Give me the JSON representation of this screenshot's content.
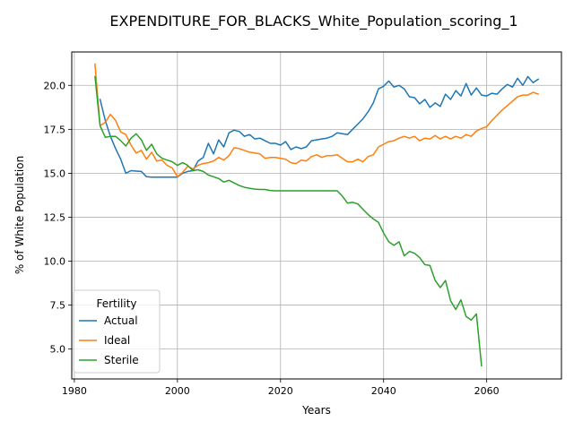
{
  "chart_data": {
    "type": "line",
    "title": "EXPENDITURE_FOR_BLACKS_White_Population_scoring_1",
    "xlabel": "Years",
    "ylabel": "% of White Population",
    "xlim": [
      1979.5,
      2074.5
    ],
    "ylim": [
      3.3,
      21.9
    ],
    "xticks": [
      1980,
      2000,
      2020,
      2040,
      2060
    ],
    "yticks": [
      5.0,
      7.5,
      10.0,
      12.5,
      15.0,
      17.5,
      20.0
    ],
    "grid": true,
    "legend": {
      "title": "Fertility",
      "position": "lower-left"
    },
    "series": [
      {
        "name": "Actual",
        "color": "#1f77b4",
        "x": [
          1985,
          1986,
          1987,
          1988,
          1989,
          1990,
          1991,
          1992,
          1993,
          1994,
          1995,
          1996,
          1997,
          1998,
          1999,
          2000,
          2001,
          2002,
          2003,
          2004,
          2005,
          2006,
          2007,
          2008,
          2009,
          2010,
          2011,
          2012,
          2013,
          2014,
          2015,
          2016,
          2017,
          2018,
          2019,
          2020,
          2021,
          2022,
          2023,
          2024,
          2025,
          2026,
          2027,
          2028,
          2029,
          2030,
          2031,
          2032,
          2033,
          2034,
          2035,
          2036,
          2037,
          2038,
          2039,
          2040,
          2041,
          2042,
          2043,
          2044,
          2045,
          2046,
          2047,
          2048,
          2049,
          2050,
          2051,
          2052,
          2053,
          2054,
          2055,
          2056,
          2057,
          2058,
          2059,
          2060,
          2061,
          2062,
          2063,
          2064,
          2065,
          2066,
          2067,
          2068,
          2069,
          2070
        ],
        "y": [
          19.2,
          18.0,
          17.1,
          16.4,
          15.8,
          15.0,
          15.15,
          15.12,
          15.1,
          14.8,
          14.78,
          14.78,
          14.78,
          14.78,
          14.78,
          14.78,
          15.0,
          15.1,
          15.15,
          15.7,
          15.9,
          16.7,
          16.1,
          16.9,
          16.5,
          17.3,
          17.45,
          17.38,
          17.1,
          17.2,
          16.95,
          17.0,
          16.85,
          16.7,
          16.7,
          16.6,
          16.8,
          16.35,
          16.5,
          16.4,
          16.5,
          16.85,
          16.9,
          16.95,
          17.0,
          17.1,
          17.3,
          17.25,
          17.2,
          17.5,
          17.8,
          18.1,
          18.5,
          19.0,
          19.8,
          19.95,
          20.25,
          19.9,
          20.0,
          19.8,
          19.35,
          19.3,
          18.95,
          19.2,
          18.75,
          19.0,
          18.8,
          19.5,
          19.2,
          19.7,
          19.4,
          20.1,
          19.45,
          19.85,
          19.45,
          19.4,
          19.55,
          19.5,
          19.8,
          20.05,
          19.9,
          20.4,
          20.0,
          20.5,
          20.15,
          20.35
        ]
      },
      {
        "name": "Ideal",
        "color": "#ff7f0e",
        "x": [
          1984,
          1985,
          1986,
          1987,
          1988,
          1989,
          1990,
          1991,
          1992,
          1993,
          1994,
          1995,
          1996,
          1997,
          1998,
          1999,
          2000,
          2001,
          2002,
          2003,
          2004,
          2005,
          2006,
          2007,
          2008,
          2009,
          2010,
          2011,
          2012,
          2013,
          2014,
          2015,
          2016,
          2017,
          2018,
          2019,
          2020,
          2021,
          2022,
          2023,
          2024,
          2025,
          2026,
          2027,
          2028,
          2029,
          2030,
          2031,
          2032,
          2033,
          2034,
          2035,
          2036,
          2037,
          2038,
          2039,
          2040,
          2041,
          2042,
          2043,
          2044,
          2045,
          2046,
          2047,
          2048,
          2049,
          2050,
          2051,
          2052,
          2053,
          2054,
          2055,
          2056,
          2057,
          2058,
          2059,
          2060,
          2061,
          2062,
          2063,
          2064,
          2065,
          2066,
          2067,
          2068,
          2069,
          2070
        ],
        "y": [
          21.2,
          17.7,
          17.9,
          18.35,
          18.0,
          17.35,
          17.2,
          16.6,
          16.15,
          16.3,
          15.8,
          16.2,
          15.7,
          15.75,
          15.45,
          15.3,
          14.8,
          15.05,
          15.4,
          15.25,
          15.45,
          15.55,
          15.6,
          15.7,
          15.9,
          15.75,
          16.0,
          16.45,
          16.4,
          16.3,
          16.2,
          16.15,
          16.1,
          15.85,
          15.9,
          15.9,
          15.85,
          15.8,
          15.6,
          15.55,
          15.75,
          15.7,
          15.95,
          16.05,
          15.9,
          16.0,
          16.0,
          16.05,
          15.85,
          15.65,
          15.65,
          15.8,
          15.65,
          15.95,
          16.05,
          16.5,
          16.65,
          16.8,
          16.85,
          17.0,
          17.1,
          17.0,
          17.1,
          16.85,
          17.0,
          16.95,
          17.15,
          16.95,
          17.1,
          16.95,
          17.1,
          17.0,
          17.2,
          17.1,
          17.4,
          17.55,
          17.65,
          18.0,
          18.3,
          18.6,
          18.85,
          19.1,
          19.35,
          19.45,
          19.45,
          19.6,
          19.5
        ]
      },
      {
        "name": "Sterile",
        "color": "#2ca02c",
        "x": [
          1984,
          1985,
          1986,
          1987,
          1988,
          1989,
          1990,
          1991,
          1992,
          1993,
          1994,
          1995,
          1996,
          1997,
          1998,
          1999,
          2000,
          2001,
          2002,
          2003,
          2004,
          2005,
          2006,
          2007,
          2008,
          2009,
          2010,
          2011,
          2012,
          2013,
          2014,
          2015,
          2016,
          2017,
          2018,
          2019,
          2020,
          2021,
          2022,
          2023,
          2024,
          2025,
          2026,
          2027,
          2028,
          2029,
          2030,
          2031,
          2032,
          2033,
          2034,
          2035,
          2036,
          2037,
          2038,
          2039,
          2040,
          2041,
          2042,
          2043,
          2044,
          2045,
          2046,
          2047,
          2048,
          2049,
          2050,
          2051,
          2052,
          2053,
          2054,
          2055,
          2056,
          2057,
          2058,
          2059
        ],
        "y": [
          20.5,
          17.7,
          17.05,
          17.1,
          17.1,
          16.85,
          16.55,
          17.0,
          17.25,
          16.9,
          16.3,
          16.65,
          16.1,
          15.85,
          15.75,
          15.65,
          15.45,
          15.6,
          15.45,
          15.15,
          15.2,
          15.1,
          14.9,
          14.8,
          14.7,
          14.5,
          14.6,
          14.45,
          14.3,
          14.2,
          14.15,
          14.1,
          14.08,
          14.08,
          14.02,
          14.0,
          14.0,
          14.0,
          14.0,
          14.0,
          14.0,
          14.0,
          14.0,
          14.0,
          14.0,
          14.0,
          14.0,
          14.0,
          13.7,
          13.3,
          13.35,
          13.25,
          12.95,
          12.65,
          12.4,
          12.2,
          11.6,
          11.1,
          10.9,
          11.1,
          10.3,
          10.55,
          10.45,
          10.2,
          9.8,
          9.75,
          8.9,
          8.5,
          8.9,
          7.75,
          7.25,
          7.8,
          6.85,
          6.65,
          7.0,
          4.05
        ]
      }
    ]
  }
}
